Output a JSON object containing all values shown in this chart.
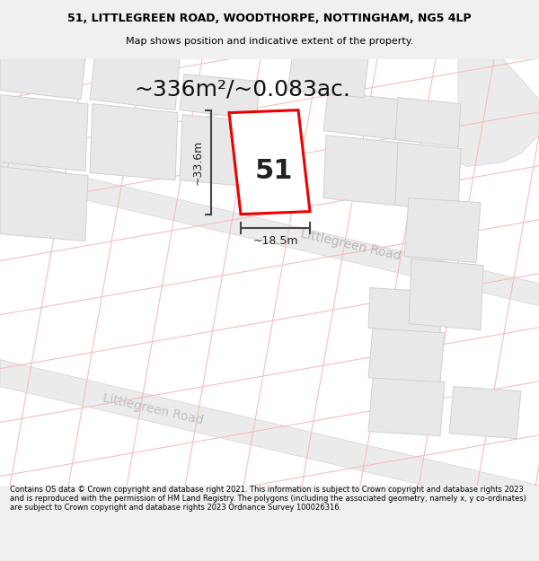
{
  "title_line1": "51, LITTLEGREEN ROAD, WOODTHORPE, NOTTINGHAM, NG5 4LP",
  "title_line2": "Map shows position and indicative extent of the property.",
  "area_text": "~336m²/~0.083ac.",
  "property_number": "51",
  "dim_vertical": "~33.6m",
  "dim_horizontal": "~18.5m",
  "road_label_upper": "Littlegreen Road",
  "road_label_lower": "Littlegreen Road",
  "footer_text": "Contains OS data © Crown copyright and database right 2021. This information is subject to Crown copyright and database rights 2023 and is reproduced with the permission of HM Land Registry. The polygons (including the associated geometry, namely x, y co-ordinates) are subject to Crown copyright and database rights 2023 Ordnance Survey 100026316.",
  "bg_color": "#f0f0f0",
  "map_bg": "#ffffff",
  "plot_color": "#ee0000",
  "plot_fill": "#ffffff",
  "grid_line_color": "#f5b8b8",
  "building_fill": "#e8e8e8",
  "building_edge": "#d0d0d0",
  "road_fill": "#ebebeb",
  "road_edge": "#d5d5d5",
  "title_fontsize": 9,
  "subtitle_fontsize": 8,
  "area_fontsize": 18,
  "dim_fontsize": 9,
  "number_fontsize": 22,
  "road_fontsize": 10,
  "footer_fontsize": 6.0
}
